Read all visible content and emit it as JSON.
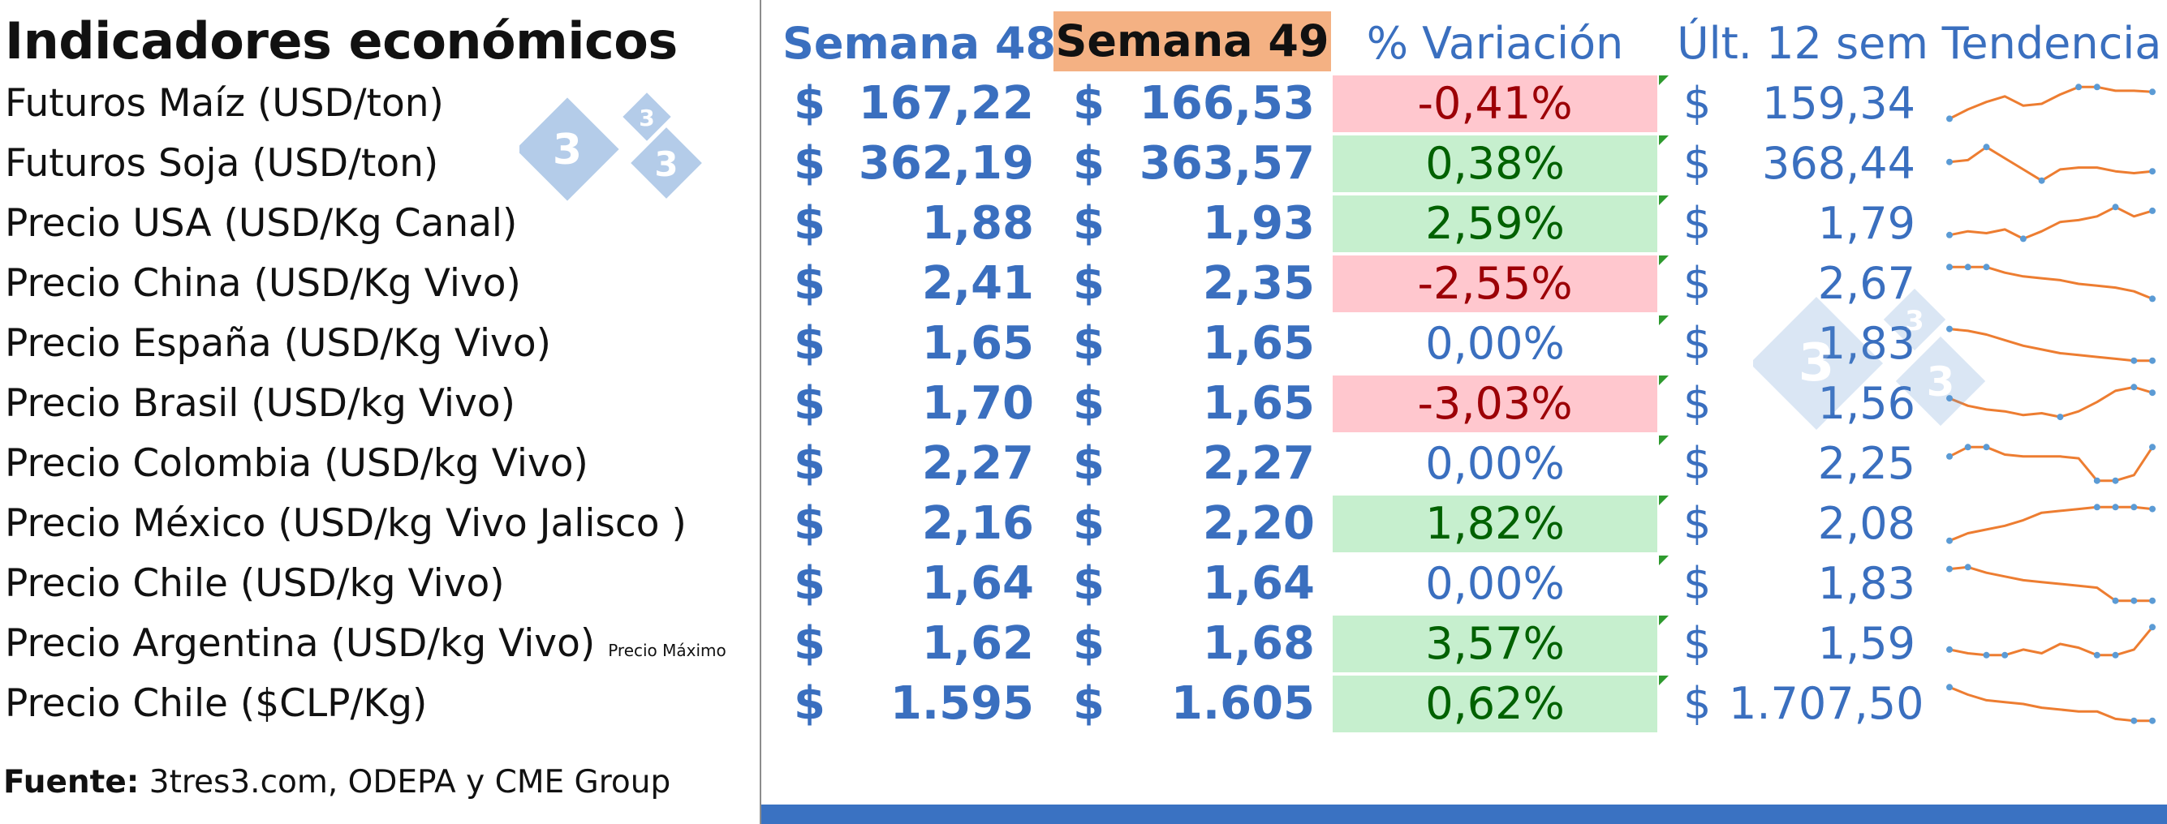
{
  "title": "Indicadores económicos",
  "headers": {
    "week_prev": "Semana 48",
    "week_curr": "Semana 49",
    "variation": "% Variación",
    "last12": "Últ. 12 sem",
    "trend": "Tendencia"
  },
  "currency_symbol": "$",
  "rows": [
    {
      "label": "Futuros Maíz (USD/ton)",
      "note": "",
      "w48": "167,22",
      "w49": "166,53",
      "var": "-0,41%",
      "var_status": "neg",
      "last12": "159,34",
      "trend": [
        0.1,
        0.35,
        0.55,
        0.7,
        0.45,
        0.5,
        0.75,
        0.95,
        0.95,
        0.85,
        0.85,
        0.82
      ]
    },
    {
      "label": "Futuros Soja (USD/ton)",
      "note": "",
      "w48": "362,19",
      "w49": "363,57",
      "var": "0,38%",
      "var_status": "pos",
      "last12": "368,44",
      "trend": [
        0.55,
        0.6,
        0.95,
        0.65,
        0.35,
        0.05,
        0.35,
        0.4,
        0.4,
        0.3,
        0.25,
        0.3
      ]
    },
    {
      "label": "Precio USA (USD/Kg Canal)",
      "note": "",
      "w48": "1,88",
      "w49": "1,93",
      "var": "2,59%",
      "var_status": "pos",
      "last12": "1,79",
      "trend": [
        0.2,
        0.3,
        0.25,
        0.35,
        0.1,
        0.3,
        0.55,
        0.6,
        0.7,
        0.95,
        0.7,
        0.85
      ]
    },
    {
      "label": "Precio China (USD/Kg Vivo)",
      "note": "",
      "w48": "2,41",
      "w49": "2,35",
      "var": "-2,55%",
      "var_status": "neg",
      "last12": "2,67",
      "trend": [
        0.95,
        0.95,
        0.95,
        0.8,
        0.7,
        0.65,
        0.6,
        0.5,
        0.45,
        0.4,
        0.3,
        0.1
      ]
    },
    {
      "label": "Precio España (USD/Kg Vivo)",
      "note": "",
      "w48": "1,65",
      "w49": "1,65",
      "var": "0,00%",
      "var_status": "zero",
      "last12": "1,83",
      "trend": [
        0.9,
        0.85,
        0.75,
        0.6,
        0.45,
        0.35,
        0.25,
        0.2,
        0.15,
        0.1,
        0.05,
        0.05
      ]
    },
    {
      "label": "Precio  Brasil (USD/kg Vivo)",
      "note": "",
      "w48": "1,70",
      "w49": "1,65",
      "var": "-3,03%",
      "var_status": "neg",
      "last12": "1,56",
      "trend": [
        0.65,
        0.45,
        0.35,
        0.3,
        0.2,
        0.25,
        0.15,
        0.3,
        0.55,
        0.85,
        0.95,
        0.8
      ]
    },
    {
      "label": "Precio Colombia (USD/kg Vivo)",
      "note": "",
      "w48": "2,27",
      "w49": "2,27",
      "var": "0,00%",
      "var_status": "zero",
      "last12": "2,25",
      "trend": [
        0.7,
        0.95,
        0.95,
        0.75,
        0.7,
        0.7,
        0.7,
        0.65,
        0.05,
        0.05,
        0.2,
        0.95
      ]
    },
    {
      "label": "Precio México (USD/kg Vivo Jalisco )",
      "note": "",
      "w48": "2,16",
      "w49": "2,20",
      "var": "1,82%",
      "var_status": "pos",
      "last12": "2,08",
      "trend": [
        0.05,
        0.25,
        0.35,
        0.45,
        0.6,
        0.8,
        0.85,
        0.9,
        0.95,
        0.95,
        0.95,
        0.9
      ]
    },
    {
      "label": "Precio Chile (USD/kg Vivo)",
      "note": "",
      "w48": "1,64",
      "w49": "1,64",
      "var": "0,00%",
      "var_status": "zero",
      "last12": "1,83",
      "trend": [
        0.9,
        0.95,
        0.8,
        0.7,
        0.6,
        0.55,
        0.5,
        0.45,
        0.4,
        0.05,
        0.05,
        0.05
      ]
    },
    {
      "label": "Precio Argentina (USD/kg Vivo)",
      "note": "Precio Máximo",
      "w48": "1,62",
      "w49": "1,68",
      "var": "3,57%",
      "var_status": "pos",
      "last12": "1,59",
      "trend": [
        0.35,
        0.25,
        0.2,
        0.2,
        0.35,
        0.25,
        0.5,
        0.4,
        0.2,
        0.2,
        0.35,
        0.95
      ]
    },
    {
      "label": "Precio Chile ($CLP/Kg)",
      "note": "",
      "w48": "1.595",
      "w49": "1.605",
      "var": "0,62%",
      "var_status": "pos",
      "last12": "1.707,50",
      "trend": [
        0.95,
        0.75,
        0.6,
        0.55,
        0.5,
        0.4,
        0.35,
        0.3,
        0.3,
        0.1,
        0.05,
        0.05
      ]
    }
  ],
  "source_label": "Fuente:",
  "source_text": " 3tres3.com, ODEPA y CME Group",
  "watermark": {
    "digit": "3"
  },
  "colors": {
    "blue": "#3a6fbf",
    "header_highlight": "#f4b183",
    "neg_fill": "#ffc7ce",
    "neg_text": "#9c0006",
    "pos_fill": "#c6efce",
    "pos_text": "#006100",
    "sparkline": "#ed7d31",
    "sparkline_marker": "#5b9bd5",
    "bottom_bar": "#3a72c2"
  }
}
